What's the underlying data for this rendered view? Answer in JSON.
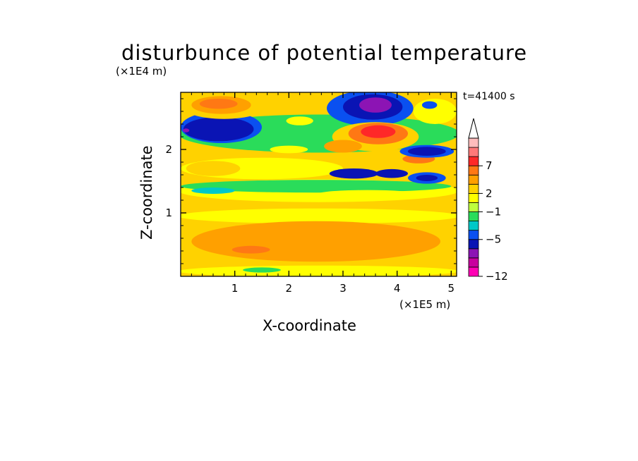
{
  "chart_data": {
    "type": "heatmap",
    "title": "disturbunce of potential temperature",
    "xlabel": "X-coordinate",
    "ylabel": "Z-coordinate",
    "x_unit": "(×1E5 m)",
    "y_unit": "(×1E4 m)",
    "time_label": "t=41400 s",
    "xlim": [
      0,
      5.1
    ],
    "ylim": [
      0,
      2.9
    ],
    "x_ticks": [
      1,
      2,
      3,
      4,
      5
    ],
    "y_ticks": [
      1,
      2
    ],
    "colorbar": {
      "levels": [
        {
          "color": "#ff00b4"
        },
        {
          "color": "#c8009e"
        },
        {
          "color": "#8c14b4"
        },
        {
          "color": "#0a14b4"
        },
        {
          "color": "#0a50f0"
        },
        {
          "color": "#00c8c8"
        },
        {
          "color": "#2adc5a"
        },
        {
          "color": "#beff3c"
        },
        {
          "color": "#ffff00"
        },
        {
          "color": "#ffd200"
        },
        {
          "color": "#ffa000"
        },
        {
          "color": "#ff7814"
        },
        {
          "color": "#ff2828"
        },
        {
          "color": "#ff7878"
        },
        {
          "color": "#ffbcbc"
        }
      ],
      "labels": [
        {
          "level": 0,
          "text": "−12"
        },
        {
          "level": 4,
          "text": "−5"
        },
        {
          "level": 7,
          "text": "−1"
        },
        {
          "level": 9,
          "text": "2"
        },
        {
          "level": 12,
          "text": "7"
        }
      ],
      "extend_top": true
    },
    "field": {
      "background": "#ffd200",
      "regions": [
        {
          "cx": 2.55,
          "cy": 0.95,
          "rx": 2.6,
          "ry": 0.12,
          "color": "#ffff00"
        },
        {
          "cx": 2.5,
          "cy": 0.55,
          "rx": 2.3,
          "ry": 0.32,
          "color": "#ffa000"
        },
        {
          "cx": 1.3,
          "cy": 0.42,
          "rx": 0.35,
          "ry": 0.06,
          "color": "#ff7814"
        },
        {
          "cx": 2.55,
          "cy": 0.08,
          "rx": 2.6,
          "ry": 0.09,
          "color": "#ffff00"
        },
        {
          "cx": 1.5,
          "cy": 0.1,
          "rx": 0.35,
          "ry": 0.04,
          "color": "#2adc5a"
        },
        {
          "cx": 2.55,
          "cy": 1.35,
          "rx": 2.6,
          "ry": 0.18,
          "color": "#ffff00"
        },
        {
          "cx": 2.5,
          "cy": 1.42,
          "rx": 2.5,
          "ry": 0.1,
          "color": "#2adc5a"
        },
        {
          "cx": 0.6,
          "cy": 1.35,
          "rx": 0.4,
          "ry": 0.05,
          "color": "#00c8c8"
        },
        {
          "cx": 1.5,
          "cy": 1.7,
          "rx": 1.5,
          "ry": 0.17,
          "color": "#ffff00"
        },
        {
          "cx": 0.6,
          "cy": 1.7,
          "rx": 0.5,
          "ry": 0.12,
          "color": "#ffd200"
        },
        {
          "cx": 2.55,
          "cy": 2.25,
          "rx": 2.6,
          "ry": 0.3,
          "color": "#2adc5a"
        },
        {
          "cx": 0.75,
          "cy": 2.35,
          "rx": 0.75,
          "ry": 0.25,
          "color": "#0a50f0"
        },
        {
          "cx": 0.7,
          "cy": 2.32,
          "rx": 0.65,
          "ry": 0.19,
          "color": "#0a14b4"
        },
        {
          "cx": 0.1,
          "cy": 2.3,
          "rx": 0.06,
          "ry": 0.03,
          "color": "#8c14b4"
        },
        {
          "cx": 0.8,
          "cy": 2.7,
          "rx": 0.8,
          "ry": 0.22,
          "color": "#ffd200"
        },
        {
          "cx": 0.75,
          "cy": 2.7,
          "rx": 0.55,
          "ry": 0.14,
          "color": "#ffa000"
        },
        {
          "cx": 0.7,
          "cy": 2.72,
          "rx": 0.35,
          "ry": 0.08,
          "color": "#ff7814"
        },
        {
          "cx": 3.5,
          "cy": 2.65,
          "rx": 0.8,
          "ry": 0.28,
          "color": "#0a50f0"
        },
        {
          "cx": 3.55,
          "cy": 2.67,
          "rx": 0.55,
          "ry": 0.2,
          "color": "#0a14b4"
        },
        {
          "cx": 3.6,
          "cy": 2.7,
          "rx": 0.3,
          "ry": 0.12,
          "color": "#8c14b4"
        },
        {
          "cx": 3.6,
          "cy": 2.2,
          "rx": 0.8,
          "ry": 0.23,
          "color": "#ffd200"
        },
        {
          "cx": 3.65,
          "cy": 2.25,
          "rx": 0.55,
          "ry": 0.17,
          "color": "#ff7814"
        },
        {
          "cx": 3.65,
          "cy": 2.28,
          "rx": 0.32,
          "ry": 0.1,
          "color": "#ff2828"
        },
        {
          "cx": 3.0,
          "cy": 2.05,
          "rx": 0.35,
          "ry": 0.1,
          "color": "#ffa000"
        },
        {
          "cx": 3.2,
          "cy": 1.62,
          "rx": 0.45,
          "ry": 0.08,
          "color": "#0a14b4"
        },
        {
          "cx": 3.9,
          "cy": 1.62,
          "rx": 0.3,
          "ry": 0.07,
          "color": "#0a14b4"
        },
        {
          "cx": 4.4,
          "cy": 1.85,
          "rx": 0.5,
          "ry": 0.14,
          "color": "#ffd200"
        },
        {
          "cx": 4.4,
          "cy": 1.85,
          "rx": 0.3,
          "ry": 0.07,
          "color": "#ff7814"
        },
        {
          "cx": 4.55,
          "cy": 1.97,
          "rx": 0.5,
          "ry": 0.1,
          "color": "#0a50f0"
        },
        {
          "cx": 4.55,
          "cy": 1.97,
          "rx": 0.35,
          "ry": 0.07,
          "color": "#0a14b4"
        },
        {
          "cx": 4.55,
          "cy": 1.55,
          "rx": 0.35,
          "ry": 0.09,
          "color": "#0a50f0"
        },
        {
          "cx": 4.55,
          "cy": 1.55,
          "rx": 0.2,
          "ry": 0.05,
          "color": "#0a14b4"
        },
        {
          "cx": 4.7,
          "cy": 2.6,
          "rx": 0.4,
          "ry": 0.2,
          "color": "#ffff00"
        },
        {
          "cx": 4.6,
          "cy": 2.7,
          "rx": 0.14,
          "ry": 0.06,
          "color": "#0a50f0"
        },
        {
          "cx": 2.0,
          "cy": 2.0,
          "rx": 0.35,
          "ry": 0.06,
          "color": "#ffff00"
        },
        {
          "cx": 2.2,
          "cy": 2.45,
          "rx": 0.25,
          "ry": 0.07,
          "color": "#ffff00"
        },
        {
          "cx": 3.45,
          "cy": 1.3,
          "rx": 0.9,
          "ry": 0.06,
          "color": "#ffff00"
        }
      ]
    }
  }
}
